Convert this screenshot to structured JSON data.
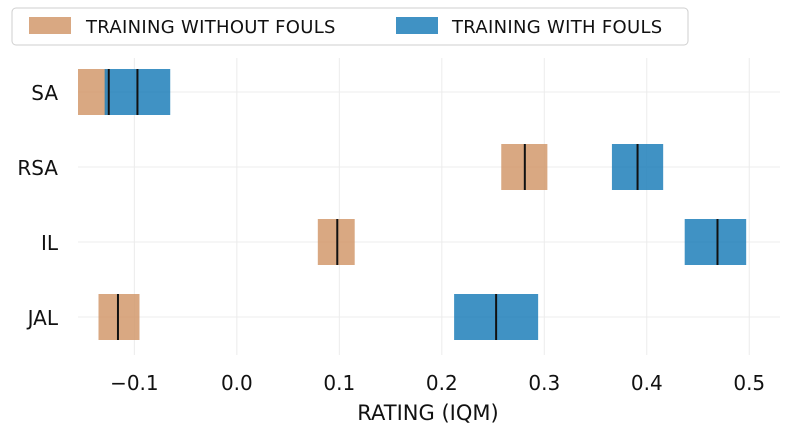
{
  "chart_data": {
    "type": "bar",
    "orientation": "horizontal-interval",
    "categories": [
      "SA",
      "RSA",
      "IL",
      "JAL"
    ],
    "xlabel": "RATING (IQM)",
    "ylabel": "",
    "xlim": [
      -0.155,
      0.53
    ],
    "xticks": [
      -0.1,
      0.0,
      0.1,
      0.2,
      0.3,
      0.4,
      0.5
    ],
    "xtick_labels": [
      "−0.1",
      "0.0",
      "0.1",
      "0.2",
      "0.3",
      "0.4",
      "0.5"
    ],
    "grid": true,
    "legend_position": "top",
    "series": [
      {
        "name": "TRAINING WITHOUT FOULS",
        "color": "#d2996c",
        "intervals": [
          {
            "category": "SA",
            "low": -0.155,
            "high": -0.127,
            "mean": -0.125
          },
          {
            "category": "RSA",
            "low": 0.258,
            "high": 0.303,
            "mean": 0.281
          },
          {
            "category": "IL",
            "low": 0.079,
            "high": 0.115,
            "mean": 0.098
          },
          {
            "category": "JAL",
            "low": -0.135,
            "high": -0.095,
            "mean": -0.116
          }
        ]
      },
      {
        "name": "TRAINING WITH FOULS",
        "color": "#1f7fba",
        "intervals": [
          {
            "category": "SA",
            "low": -0.129,
            "high": -0.065,
            "mean": -0.097
          },
          {
            "category": "RSA",
            "low": 0.366,
            "high": 0.416,
            "mean": 0.391
          },
          {
            "category": "IL",
            "low": 0.437,
            "high": 0.497,
            "mean": 0.469
          },
          {
            "category": "JAL",
            "low": 0.212,
            "high": 0.294,
            "mean": 0.253
          }
        ]
      }
    ]
  }
}
